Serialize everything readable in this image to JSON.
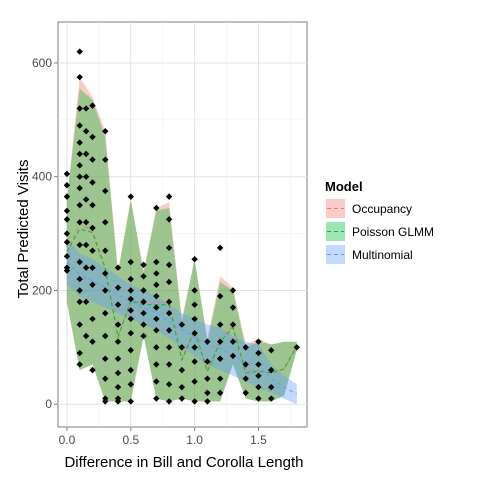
{
  "chart_data": {
    "type": "line",
    "xlabel": "Difference in Bill and Corolla Length",
    "ylabel": "Total Predicted Visits",
    "xlim": [
      -0.07,
      1.88
    ],
    "ylim": [
      -40,
      672
    ],
    "x_ticks": [
      0.0,
      0.5,
      1.0,
      1.5
    ],
    "x_tick_labels": [
      "0.0",
      "0.5",
      "1.0",
      "1.5"
    ],
    "y_ticks": [
      0,
      200,
      400,
      600
    ],
    "y_tick_labels": [
      "0",
      "200",
      "400",
      "600"
    ],
    "grid": true,
    "legend": {
      "title": "Model",
      "position": "right",
      "entries": [
        "Occupancy",
        "Poisson GLMM",
        "Multinomial"
      ]
    },
    "series": [
      {
        "name": "Occupancy",
        "color": "#F8766D",
        "fill": "#F8766D",
        "x": [
          0.0,
          0.1,
          0.2,
          0.3,
          0.4,
          0.5,
          0.6,
          0.7,
          0.8,
          0.9,
          1.0,
          1.1,
          1.2,
          1.3,
          1.4,
          1.5,
          1.6,
          1.7,
          1.8
        ],
        "upper": [
          360,
          575,
          540,
          480,
          235,
          360,
          235,
          345,
          355,
          150,
          255,
          115,
          225,
          205,
          105,
          115,
          105,
          110,
          110
        ],
        "lower": [
          180,
          60,
          70,
          5,
          5,
          5,
          120,
          10,
          5,
          10,
          5,
          5,
          5,
          70,
          10,
          5,
          5,
          15,
          95
        ],
        "mean": [
          270,
          317,
          305,
          242,
          120,
          182,
          178,
          178,
          180,
          80,
          130,
          60,
          115,
          138,
          58,
          60,
          55,
          62,
          102
        ]
      },
      {
        "name": "Poisson GLMM",
        "color": "#00BA38",
        "fill": "#00BA38",
        "x": [
          0.0,
          0.1,
          0.2,
          0.3,
          0.4,
          0.5,
          0.6,
          0.7,
          0.8,
          0.9,
          1.0,
          1.1,
          1.2,
          1.3,
          1.4,
          1.5,
          1.6,
          1.7,
          1.8
        ],
        "upper": [
          360,
          555,
          535,
          470,
          230,
          360,
          230,
          340,
          345,
          145,
          255,
          110,
          215,
          200,
          100,
          110,
          105,
          110,
          110
        ],
        "lower": [
          180,
          60,
          70,
          5,
          5,
          5,
          120,
          10,
          5,
          10,
          5,
          5,
          5,
          70,
          10,
          5,
          5,
          15,
          95
        ],
        "mean": [
          268,
          308,
          302,
          238,
          118,
          182,
          175,
          175,
          175,
          78,
          130,
          58,
          110,
          135,
          55,
          58,
          55,
          62,
          102
        ]
      },
      {
        "name": "Multinomial",
        "color": "#619CFF",
        "fill": "#619CFF",
        "x": [
          0.0,
          0.1,
          0.2,
          0.3,
          0.4,
          0.5,
          0.6,
          0.7,
          0.8,
          0.9,
          1.0,
          1.1,
          1.2,
          1.3,
          1.4,
          1.5,
          1.6,
          1.7,
          1.8
        ],
        "upper": [
          290,
          265,
          255,
          240,
          225,
          210,
          200,
          190,
          175,
          160,
          150,
          140,
          135,
          120,
          110,
          105,
          70,
          50,
          35
        ],
        "lower": [
          210,
          190,
          180,
          170,
          160,
          150,
          140,
          130,
          115,
          100,
          85,
          70,
          60,
          50,
          40,
          30,
          20,
          10,
          0
        ],
        "mean": [
          250,
          228,
          217,
          205,
          192,
          180,
          170,
          160,
          145,
          130,
          118,
          105,
          98,
          85,
          75,
          68,
          45,
          30,
          18
        ]
      }
    ],
    "points": [
      [
        0.0,
        405
      ],
      [
        0.0,
        385
      ],
      [
        0.0,
        365
      ],
      [
        0.0,
        340
      ],
      [
        0.0,
        325
      ],
      [
        0.0,
        300
      ],
      [
        0.0,
        285
      ],
      [
        0.0,
        260
      ],
      [
        0.0,
        240
      ],
      [
        0.0,
        235
      ],
      [
        0.1,
        620
      ],
      [
        0.1,
        575
      ],
      [
        0.1,
        520
      ],
      [
        0.1,
        490
      ],
      [
        0.1,
        460
      ],
      [
        0.1,
        440
      ],
      [
        0.1,
        420
      ],
      [
        0.1,
        400
      ],
      [
        0.1,
        380
      ],
      [
        0.1,
        350
      ],
      [
        0.1,
        320
      ],
      [
        0.1,
        280
      ],
      [
        0.1,
        250
      ],
      [
        0.1,
        220
      ],
      [
        0.1,
        200
      ],
      [
        0.1,
        180
      ],
      [
        0.1,
        140
      ],
      [
        0.1,
        90
      ],
      [
        0.1,
        70
      ],
      [
        0.15,
        520
      ],
      [
        0.15,
        480
      ],
      [
        0.15,
        440
      ],
      [
        0.15,
        400
      ],
      [
        0.15,
        360
      ],
      [
        0.15,
        320
      ],
      [
        0.15,
        280
      ],
      [
        0.15,
        240
      ],
      [
        0.15,
        180
      ],
      [
        0.15,
        120
      ],
      [
        0.2,
        525
      ],
      [
        0.2,
        470
      ],
      [
        0.2,
        430
      ],
      [
        0.2,
        390
      ],
      [
        0.2,
        350
      ],
      [
        0.2,
        310
      ],
      [
        0.2,
        270
      ],
      [
        0.2,
        240
      ],
      [
        0.2,
        210
      ],
      [
        0.2,
        150
      ],
      [
        0.2,
        110
      ],
      [
        0.2,
        60
      ],
      [
        0.3,
        480
      ],
      [
        0.3,
        430
      ],
      [
        0.3,
        375
      ],
      [
        0.3,
        320
      ],
      [
        0.3,
        270
      ],
      [
        0.3,
        230
      ],
      [
        0.3,
        200
      ],
      [
        0.3,
        160
      ],
      [
        0.3,
        120
      ],
      [
        0.3,
        80
      ],
      [
        0.3,
        45
      ],
      [
        0.3,
        10
      ],
      [
        0.3,
        5
      ],
      [
        0.4,
        240
      ],
      [
        0.4,
        205
      ],
      [
        0.4,
        175
      ],
      [
        0.4,
        140
      ],
      [
        0.4,
        110
      ],
      [
        0.4,
        80
      ],
      [
        0.4,
        55
      ],
      [
        0.4,
        30
      ],
      [
        0.4,
        10
      ],
      [
        0.4,
        5
      ],
      [
        0.5,
        365
      ],
      [
        0.5,
        250
      ],
      [
        0.5,
        220
      ],
      [
        0.5,
        200
      ],
      [
        0.5,
        185
      ],
      [
        0.5,
        165
      ],
      [
        0.5,
        150
      ],
      [
        0.5,
        125
      ],
      [
        0.5,
        95
      ],
      [
        0.5,
        60
      ],
      [
        0.5,
        35
      ],
      [
        0.5,
        5
      ],
      [
        0.6,
        245
      ],
      [
        0.6,
        225
      ],
      [
        0.6,
        200
      ],
      [
        0.6,
        180
      ],
      [
        0.6,
        160
      ],
      [
        0.6,
        140
      ],
      [
        0.6,
        120
      ],
      [
        0.7,
        345
      ],
      [
        0.7,
        250
      ],
      [
        0.7,
        230
      ],
      [
        0.7,
        210
      ],
      [
        0.7,
        190
      ],
      [
        0.7,
        170
      ],
      [
        0.7,
        150
      ],
      [
        0.7,
        130
      ],
      [
        0.7,
        100
      ],
      [
        0.7,
        70
      ],
      [
        0.7,
        40
      ],
      [
        0.7,
        10
      ],
      [
        0.8,
        365
      ],
      [
        0.8,
        325
      ],
      [
        0.8,
        275
      ],
      [
        0.8,
        245
      ],
      [
        0.8,
        215
      ],
      [
        0.8,
        180
      ],
      [
        0.8,
        160
      ],
      [
        0.8,
        130
      ],
      [
        0.8,
        100
      ],
      [
        0.8,
        70
      ],
      [
        0.8,
        35
      ],
      [
        0.8,
        5
      ],
      [
        0.9,
        140
      ],
      [
        0.9,
        100
      ],
      [
        0.9,
        60
      ],
      [
        0.9,
        30
      ],
      [
        0.9,
        10
      ],
      [
        1.0,
        255
      ],
      [
        1.0,
        200
      ],
      [
        1.0,
        175
      ],
      [
        1.0,
        150
      ],
      [
        1.0,
        125
      ],
      [
        1.0,
        100
      ],
      [
        1.0,
        75
      ],
      [
        1.0,
        40
      ],
      [
        1.0,
        5
      ],
      [
        1.1,
        110
      ],
      [
        1.1,
        75
      ],
      [
        1.1,
        45
      ],
      [
        1.1,
        20
      ],
      [
        1.1,
        5
      ],
      [
        1.2,
        275
      ],
      [
        1.2,
        190
      ],
      [
        1.2,
        140
      ],
      [
        1.2,
        110
      ],
      [
        1.2,
        80
      ],
      [
        1.2,
        45
      ],
      [
        1.2,
        20
      ],
      [
        1.3,
        200
      ],
      [
        1.3,
        170
      ],
      [
        1.3,
        140
      ],
      [
        1.3,
        110
      ],
      [
        1.3,
        85
      ],
      [
        1.4,
        100
      ],
      [
        1.4,
        70
      ],
      [
        1.4,
        45
      ],
      [
        1.4,
        20
      ],
      [
        1.5,
        110
      ],
      [
        1.5,
        90
      ],
      [
        1.5,
        70
      ],
      [
        1.5,
        50
      ],
      [
        1.5,
        30
      ],
      [
        1.5,
        10
      ],
      [
        1.6,
        95
      ],
      [
        1.6,
        60
      ],
      [
        1.6,
        30
      ],
      [
        1.6,
        10
      ],
      [
        1.8,
        100
      ]
    ]
  }
}
